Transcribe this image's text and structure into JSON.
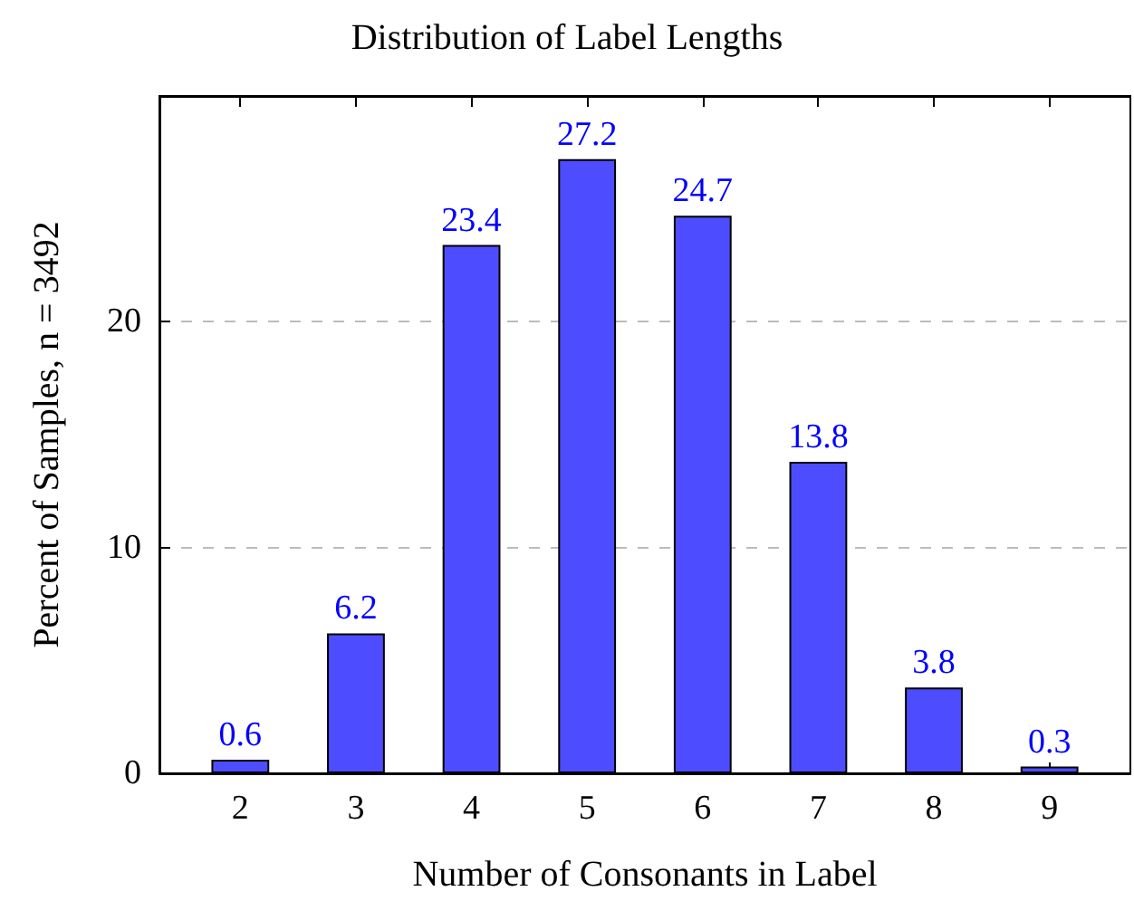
{
  "chart_data": {
    "type": "bar",
    "title": "Distribution of Label Lengths",
    "xlabel": "Number of Consonants in Label",
    "ylabel": "Percent of Samples, n = 3492",
    "x": [
      2,
      3,
      4,
      5,
      6,
      7,
      8,
      9
    ],
    "values": [
      0.6,
      6.2,
      23.4,
      27.2,
      24.7,
      13.8,
      3.8,
      0.3
    ],
    "color": "#4d4dff",
    "xlim": [
      1.3,
      9.7
    ],
    "xticks": [
      2,
      3,
      4,
      5,
      6,
      7,
      8,
      9
    ],
    "ylim": [
      0,
      30
    ],
    "yticks": [
      0,
      10,
      20
    ],
    "grid": "y",
    "data_labels": true
  }
}
